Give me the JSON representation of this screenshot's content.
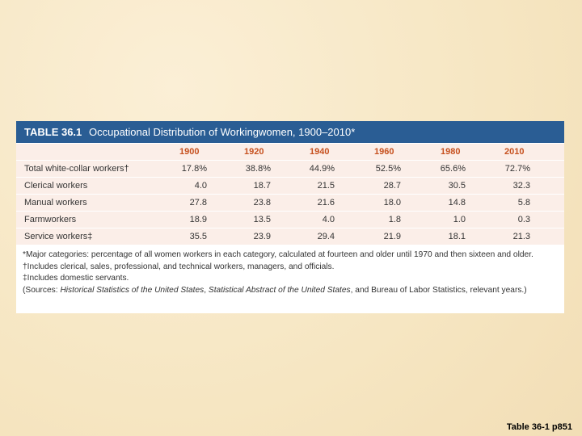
{
  "table": {
    "number": "TABLE 36.1",
    "title": "Occupational Distribution of Workingwomen, 1900–2010*",
    "columns": [
      "1900",
      "1920",
      "1940",
      "1960",
      "1980",
      "2010"
    ],
    "rows": [
      [
        "Total white-collar workers†",
        "17.8%",
        "38.8%",
        "44.9%",
        "52.5%",
        "65.6%",
        "72.7%"
      ],
      [
        "Clerical workers",
        "4.0",
        "18.7",
        "21.5",
        "28.7",
        "30.5",
        "32.3"
      ],
      [
        "Manual workers",
        "27.8",
        "23.8",
        "21.6",
        "18.0",
        "14.8",
        "5.8"
      ],
      [
        "Farmworkers",
        "18.9",
        "13.5",
        "4.0",
        "1.8",
        "1.0",
        "0.3"
      ],
      [
        "Service workers‡",
        "35.5",
        "23.9",
        "29.4",
        "21.9",
        "18.1",
        "21.3"
      ]
    ],
    "notes": [
      "*Major categories: percentage of all women workers in each category, calculated at fourteen and older until 1970 and then sixteen and older.",
      "†Includes clerical, sales, professional, and technical workers, managers, and officials.",
      "‡Includes domestic servants."
    ],
    "sources": [
      "(Sources: ",
      "Historical Statistics of the United States",
      ", ",
      "Statistical Abstract of the United States",
      ", and Bureau of Labor Statistics, relevant years.)"
    ]
  },
  "footer": "Table 36-1 p851"
}
